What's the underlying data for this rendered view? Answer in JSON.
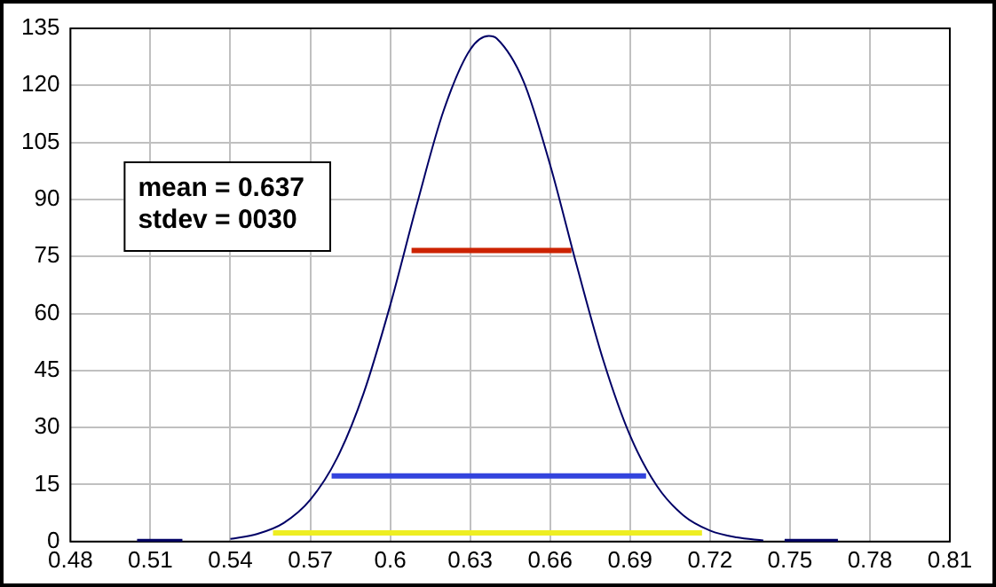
{
  "chart_data": {
    "type": "line",
    "xlim": [
      0.48,
      0.81
    ],
    "xticks": [
      0.48,
      0.51,
      0.54,
      0.57,
      0.6,
      0.63,
      0.66,
      0.69,
      0.72,
      0.75,
      0.78,
      0.81
    ],
    "ylim": [
      0,
      135
    ],
    "yticks": [
      0,
      15,
      30,
      45,
      60,
      75,
      90,
      105,
      120,
      135
    ],
    "grid": true,
    "legend": false,
    "marker": "none",
    "line_style": "solid",
    "annotations": [
      "mean = 0.637",
      "stdev = 0030"
    ],
    "series": [
      {
        "color": "#000066",
        "x": [
          0.54,
          0.55,
          0.56,
          0.57,
          0.58,
          0.59,
          0.6,
          0.61,
          0.62,
          0.63,
          0.637,
          0.64,
          0.65,
          0.66,
          0.67,
          0.68,
          0.69,
          0.7,
          0.71,
          0.72,
          0.73,
          0.74
        ],
        "values": [
          0.7,
          2,
          4.9,
          11,
          21.9,
          39,
          62.2,
          88.7,
          113.3,
          129.4,
          133,
          132.3,
          121.1,
          99.1,
          72.6,
          47.6,
          27.9,
          14.7,
          6.9,
          2.9,
          1.1,
          0.3
        ]
      },
      {
        "color": "#cc2200",
        "x": [
          0.608,
          0.668
        ],
        "values": [
          76.6,
          76.6
        ]
      },
      {
        "color": "#3344dd",
        "x": [
          0.578,
          0.696
        ],
        "values": [
          17.3,
          17.3
        ]
      },
      {
        "color": "#eeee22",
        "x": [
          0.556,
          0.717
        ],
        "values": [
          2.3,
          2.3
        ]
      },
      {
        "color": "#000066",
        "x": [
          0.505,
          0.522
        ],
        "values": [
          0,
          0
        ]
      },
      {
        "color": "#000066",
        "x": [
          0.748,
          0.768
        ],
        "values": [
          0,
          0
        ]
      }
    ]
  }
}
